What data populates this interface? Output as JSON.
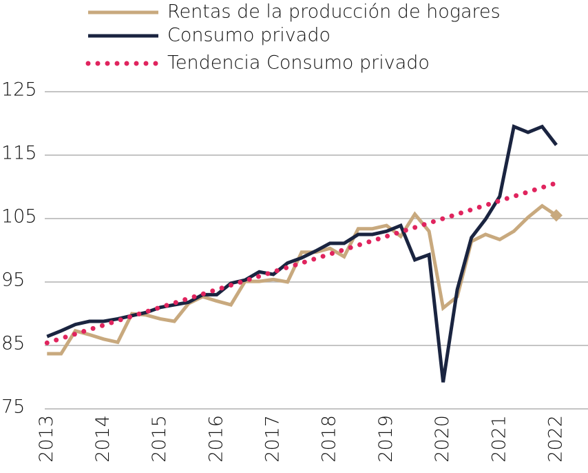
{
  "chart_data": {
    "type": "line",
    "x": [
      2013,
      2013.25,
      2013.5,
      2013.75,
      2014,
      2014.25,
      2014.5,
      2014.75,
      2015,
      2015.25,
      2015.5,
      2015.75,
      2016,
      2016.25,
      2016.5,
      2016.75,
      2017,
      2017.25,
      2017.5,
      2017.75,
      2018,
      2018.25,
      2018.5,
      2018.75,
      2019,
      2019.25,
      2019.5,
      2019.75,
      2020,
      2020.25,
      2020.5,
      2020.75,
      2021,
      2021.25,
      2021.5,
      2021.75,
      2022
    ],
    "series": [
      {
        "name": "Rentas de la producción de hogares",
        "color": "#c8a97e",
        "style": "solid",
        "end_marker": "diamond",
        "values": [
          83.7,
          83.7,
          87.3,
          86.7,
          86.0,
          85.5,
          90.0,
          89.8,
          89.2,
          88.8,
          91.6,
          92.7,
          92.0,
          91.4,
          95.1,
          95.1,
          95.4,
          95.0,
          99.7,
          99.7,
          100.3,
          99.0,
          103.4,
          103.4,
          103.9,
          102.2,
          105.7,
          103.0,
          90.9,
          92.7,
          101.4,
          102.5,
          101.7,
          103.0,
          105.2,
          107.0,
          105.5
        ]
      },
      {
        "name": "Consumo privado",
        "color": "#1a2440",
        "style": "solid",
        "values": [
          86.4,
          87.3,
          88.3,
          88.8,
          88.8,
          89.2,
          89.7,
          90.2,
          91.0,
          91.4,
          91.8,
          93.0,
          93.0,
          94.8,
          95.3,
          96.6,
          96.2,
          98.0,
          98.8,
          99.9,
          101.1,
          101.1,
          102.5,
          102.5,
          103.0,
          103.9,
          98.5,
          99.3,
          79.2,
          93.8,
          102.0,
          104.9,
          108.5,
          119.5,
          118.6,
          119.5,
          116.6
        ]
      },
      {
        "name": "Tendencia Consumo privado",
        "color": "#e0245e",
        "style": "dotted",
        "values": [
          85.4,
          86.1,
          86.8,
          87.5,
          88.2,
          88.9,
          89.6,
          90.3,
          91.0,
          91.7,
          92.4,
          93.1,
          93.8,
          94.5,
          95.2,
          95.9,
          96.6,
          97.3,
          98.0,
          98.7,
          99.4,
          100.1,
          100.8,
          101.5,
          102.2,
          102.9,
          103.6,
          104.3,
          105.0,
          105.7,
          106.4,
          107.1,
          107.8,
          108.5,
          109.2,
          109.9,
          110.6
        ]
      }
    ],
    "xlim": [
      2012.96,
      2022.56
    ],
    "xticks": [
      2013,
      2014,
      2015,
      2016,
      2017,
      2018,
      2019,
      2020,
      2021,
      2022
    ],
    "ylim": [
      75,
      125
    ],
    "yticks": [
      75,
      85,
      95,
      105,
      115,
      125
    ],
    "grid": true,
    "legend": "top-left"
  }
}
